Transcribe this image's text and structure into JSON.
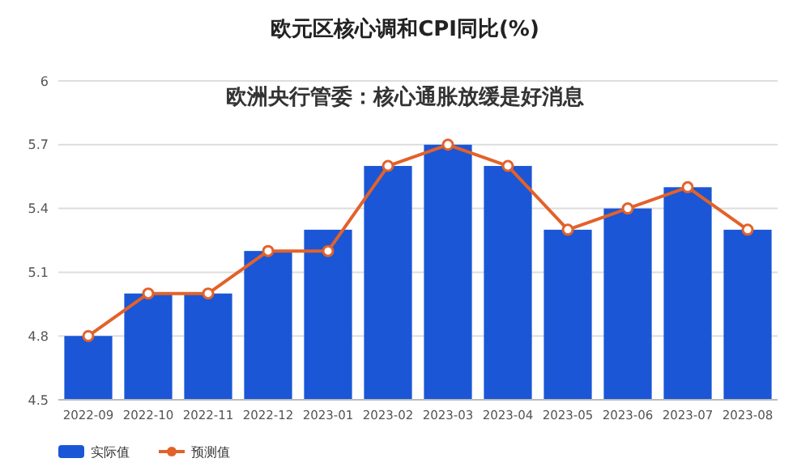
{
  "chart_data": {
    "type": "bar",
    "title": "欧元区核心调和CPI同比(%)",
    "annotations": [
      "欧洲央行管委：核心通胀放缓是好消息"
    ],
    "categories": [
      "2022-09",
      "2022-10",
      "2022-11",
      "2022-12",
      "2023-01",
      "2023-02",
      "2023-03",
      "2023-04",
      "2023-05",
      "2023-06",
      "2023-07",
      "2023-08"
    ],
    "series": [
      {
        "name": "实际值",
        "color": "#1a56d6",
        "values": [
          4.8,
          5.0,
          5.0,
          5.2,
          5.3,
          5.6,
          5.7,
          5.6,
          5.3,
          5.4,
          5.5,
          5.3
        ]
      },
      {
        "name": "预测值",
        "type": "line",
        "color": "#e2622a",
        "marker": "circle",
        "values": [
          4.8,
          5.0,
          5.0,
          5.2,
          5.2,
          5.6,
          5.7,
          5.6,
          5.3,
          5.4,
          5.5,
          5.3
        ]
      }
    ],
    "ylim": [
      4.5,
      6
    ],
    "yticks": [
      4.5,
      4.8,
      5.1,
      5.4,
      5.7,
      6
    ],
    "grid": "y",
    "legend": "bottom left"
  }
}
